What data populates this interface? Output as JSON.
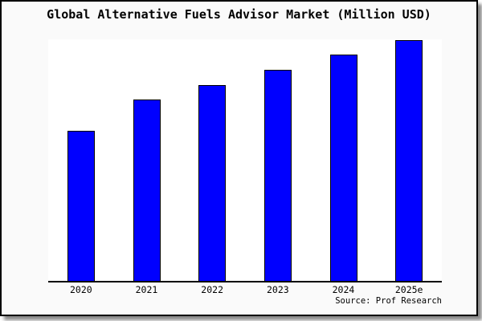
{
  "card": {
    "background": "#fafafa",
    "border_color": "#000000",
    "shadow_color": "#8a8a8a"
  },
  "title": "Global Alternative Fuels Advisor Market (Million USD)",
  "source_note": "Source: Prof Research",
  "chart_data": {
    "type": "bar",
    "title": "Global Alternative Fuels Advisor Market (Million USD)",
    "categories": [
      "2020",
      "2021",
      "2022",
      "2023",
      "2024",
      "2025e"
    ],
    "values": [
      62.3,
      75.2,
      81.3,
      87.8,
      94.0,
      100.0
    ],
    "values_note": "relative index estimated from bar heights; 2025e = 100; no numeric y-axis shown in chart",
    "xlabel": "",
    "ylabel": "",
    "ylim": [
      0,
      100
    ],
    "grid": false,
    "legend": false,
    "y_axis_visible": false,
    "bar_color": "#0000ff",
    "bar_border_color": "#000000"
  }
}
